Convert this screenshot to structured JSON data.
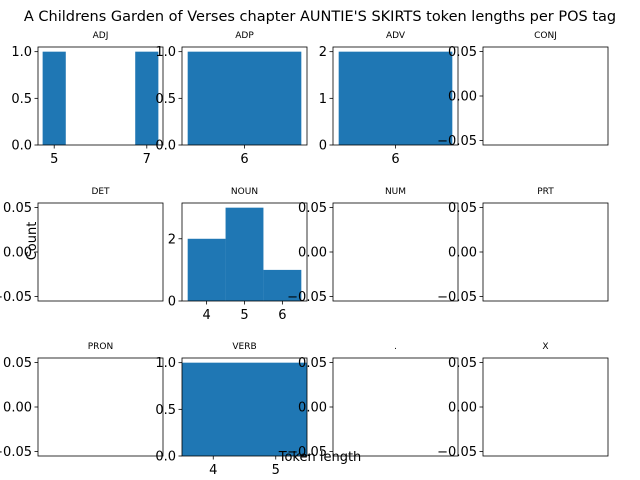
{
  "chart_data": {
    "type": "bar",
    "title": "A Childrens Garden of Verses chapter AUNTIE'S SKIRTS token lengths per POS tag",
    "xlabel": "Token length",
    "ylabel": "Count",
    "color": "#1f77b4",
    "grid": false,
    "panels": [
      {
        "name": "ADJ",
        "bars": [
          {
            "x0": 4.75,
            "x1": 5.25,
            "value": 1
          },
          {
            "x0": 6.75,
            "x1": 7.25,
            "value": 1
          }
        ],
        "xlim": [
          4.65,
          7.35
        ],
        "ylim": [
          0,
          1.05
        ],
        "xticks": [
          {
            "v": 5,
            "label": "5"
          },
          {
            "v": 7,
            "label": "7"
          }
        ],
        "yticks": [
          {
            "v": 0,
            "label": "0.0"
          },
          {
            "v": 0.5,
            "label": "0.5"
          },
          {
            "v": 1,
            "label": "1.0"
          }
        ]
      },
      {
        "name": "ADP",
        "bars": [
          {
            "x0": 5.5,
            "x1": 6.5,
            "value": 1
          }
        ],
        "xlim": [
          5.45,
          6.55
        ],
        "ylim": [
          0,
          1.05
        ],
        "xticks": [
          {
            "v": 6,
            "label": "6"
          }
        ],
        "yticks": [
          {
            "v": 0,
            "label": "0.0"
          },
          {
            "v": 0.5,
            "label": "0.5"
          },
          {
            "v": 1,
            "label": "1.0"
          }
        ]
      },
      {
        "name": "ADV",
        "bars": [
          {
            "x0": 5.5,
            "x1": 6.5,
            "value": 2
          }
        ],
        "xlim": [
          5.45,
          6.55
        ],
        "ylim": [
          0,
          2.1
        ],
        "xticks": [
          {
            "v": 6,
            "label": "6"
          }
        ],
        "yticks": [
          {
            "v": 0,
            "label": "0"
          },
          {
            "v": 1,
            "label": "1"
          },
          {
            "v": 2,
            "label": "2"
          }
        ]
      },
      {
        "name": "CONJ",
        "bars": [],
        "xlim": [
          0,
          1
        ],
        "ylim": [
          -0.055,
          0.055
        ],
        "xticks": [],
        "yticks": [
          {
            "v": -0.05,
            "label": "−0.05"
          },
          {
            "v": 0,
            "label": "0.00"
          },
          {
            "v": 0.05,
            "label": "0.05"
          }
        ]
      },
      {
        "name": "DET",
        "bars": [],
        "xlim": [
          0,
          1
        ],
        "ylim": [
          -0.055,
          0.055
        ],
        "xticks": [],
        "yticks": [
          {
            "v": -0.05,
            "label": "−0.05"
          },
          {
            "v": 0,
            "label": "0.00"
          },
          {
            "v": 0.05,
            "label": "0.05"
          }
        ]
      },
      {
        "name": "NOUN",
        "bars": [
          {
            "x0": 3.5,
            "x1": 4.5,
            "value": 2
          },
          {
            "x0": 4.5,
            "x1": 5.5,
            "value": 3
          },
          {
            "x0": 5.5,
            "x1": 6.5,
            "value": 1
          }
        ],
        "xlim": [
          3.35,
          6.65
        ],
        "ylim": [
          0,
          3.15
        ],
        "xticks": [
          {
            "v": 4,
            "label": "4"
          },
          {
            "v": 5,
            "label": "5"
          },
          {
            "v": 6,
            "label": "6"
          }
        ],
        "yticks": [
          {
            "v": 0,
            "label": "0"
          },
          {
            "v": 2,
            "label": "2"
          }
        ]
      },
      {
        "name": "NUM",
        "bars": [],
        "xlim": [
          0,
          1
        ],
        "ylim": [
          -0.055,
          0.055
        ],
        "xticks": [],
        "yticks": [
          {
            "v": -0.05,
            "label": "−0.05"
          },
          {
            "v": 0,
            "label": "0.00"
          },
          {
            "v": 0.05,
            "label": "0.05"
          }
        ]
      },
      {
        "name": "PRT",
        "bars": [],
        "xlim": [
          0,
          1
        ],
        "ylim": [
          -0.055,
          0.055
        ],
        "xticks": [],
        "yticks": [
          {
            "v": -0.05,
            "label": "−0.05"
          },
          {
            "v": 0,
            "label": "0.00"
          },
          {
            "v": 0.05,
            "label": "0.05"
          }
        ]
      },
      {
        "name": "PRON",
        "bars": [],
        "xlim": [
          0,
          1
        ],
        "ylim": [
          -0.055,
          0.055
        ],
        "xticks": [],
        "yticks": [
          {
            "v": -0.05,
            "label": "−0.05"
          },
          {
            "v": 0,
            "label": "0.00"
          },
          {
            "v": 0.05,
            "label": "0.05"
          }
        ]
      },
      {
        "name": "VERB",
        "bars": [
          {
            "x0": 3.5,
            "x1": 5.5,
            "value": 1
          }
        ],
        "xlim": [
          3.5,
          5.5
        ],
        "ylim": [
          0,
          1.05
        ],
        "xticks": [
          {
            "v": 4,
            "label": "4"
          },
          {
            "v": 5,
            "label": "5"
          }
        ],
        "yticks": [
          {
            "v": 0,
            "label": "0.0"
          },
          {
            "v": 0.5,
            "label": "0.5"
          },
          {
            "v": 1,
            "label": "1.0"
          }
        ]
      },
      {
        "name": ".",
        "bars": [],
        "xlim": [
          0,
          1
        ],
        "ylim": [
          -0.055,
          0.055
        ],
        "xticks": [],
        "yticks": [
          {
            "v": -0.05,
            "label": "−0.05"
          },
          {
            "v": 0,
            "label": "0.00"
          },
          {
            "v": 0.05,
            "label": "0.05"
          }
        ]
      },
      {
        "name": "X",
        "bars": [],
        "xlim": [
          0,
          1
        ],
        "ylim": [
          -0.055,
          0.055
        ],
        "xticks": [],
        "yticks": [
          {
            "v": -0.05,
            "label": "−0.05"
          },
          {
            "v": 0,
            "label": "0.00"
          },
          {
            "v": 0.05,
            "label": "0.05"
          }
        ]
      }
    ]
  }
}
